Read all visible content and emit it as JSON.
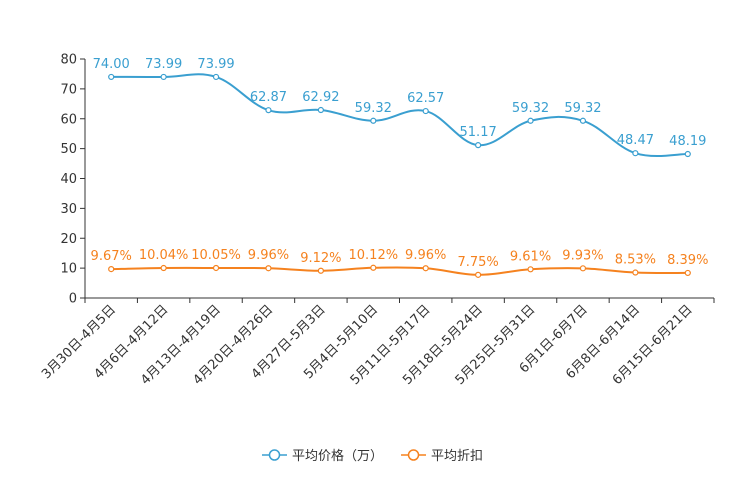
{
  "chart_data": {
    "type": "line",
    "title": "",
    "xlabel": "",
    "ylabel": "",
    "ylim": [
      0,
      80
    ],
    "yticks": [
      0,
      10,
      20,
      30,
      40,
      50,
      60,
      70,
      80
    ],
    "grid": false,
    "legend_position": "bottom",
    "categories": [
      "3月30日-4月5日",
      "4月6日-4月12日",
      "4月13日-4月19日",
      "4月20日-4月26日",
      "4月27日-5月3日",
      "5月4日-5月10日",
      "5月11日-5月17日",
      "5月18日-5月24日",
      "5月25日-5月31日",
      "6月1日-6月7日",
      "6月8日-6月14日",
      "6月15日-6月21日"
    ],
    "series": [
      {
        "name": "平均价格（万）",
        "color": "#3a9fd0",
        "values": [
          74.0,
          73.99,
          73.99,
          62.87,
          62.92,
          59.32,
          62.57,
          51.17,
          59.32,
          59.32,
          48.47,
          48.19
        ],
        "labels": [
          "74.00",
          "73.99",
          "73.99",
          "62.87",
          "62.92",
          "59.32",
          "62.57",
          "51.17",
          "59.32",
          "59.32",
          "48.47",
          "48.19"
        ]
      },
      {
        "name": "平均折扣",
        "color": "#f5821f",
        "values": [
          9.67,
          10.04,
          10.05,
          9.96,
          9.12,
          10.12,
          9.96,
          7.75,
          9.61,
          9.93,
          8.53,
          8.39
        ],
        "labels": [
          "9.67%",
          "10.04%",
          "10.05%",
          "9.96%",
          "9.12%",
          "10.12%",
          "9.96%",
          "7.75%",
          "9.61%",
          "9.93%",
          "8.53%",
          "8.39%"
        ]
      }
    ]
  }
}
